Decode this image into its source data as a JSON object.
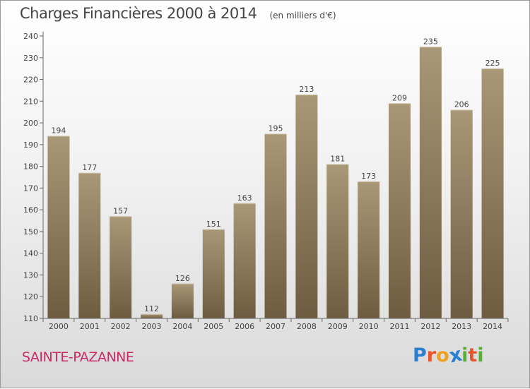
{
  "title": "Charges Financières 2000 à 2014",
  "unit_note": "(en milliers d'€)",
  "town": "SAINTE-PAZANNE",
  "logo": {
    "text": "Proxiti",
    "letters": [
      "P",
      "r",
      "o",
      "x",
      "i",
      "t",
      "i"
    ],
    "colors": [
      "#2a7fd0",
      "#e8552a",
      "#f0a020",
      "#2a7fd0",
      "#58b030",
      "#e8552a",
      "#58b030"
    ]
  },
  "colors": {
    "bar_light": "#a89877",
    "bar_dark": "#6e5c40",
    "axis": "#666666",
    "text": "#444444",
    "town": "#cc2a66"
  },
  "chart_data": {
    "type": "bar",
    "title": "Charges Financières 2000 à 2014",
    "subtitle": "(en milliers d'€)",
    "xlabel": "",
    "ylabel": "",
    "categories": [
      "2000",
      "2001",
      "2002",
      "2003",
      "2004",
      "2005",
      "2006",
      "2007",
      "2008",
      "2009",
      "2010",
      "2011",
      "2012",
      "2013",
      "2014"
    ],
    "values": [
      194,
      177,
      157,
      112,
      126,
      151,
      163,
      195,
      213,
      181,
      173,
      209,
      235,
      206,
      225
    ],
    "ylim": [
      110,
      240
    ],
    "yticks": [
      110,
      120,
      130,
      140,
      150,
      160,
      170,
      180,
      190,
      200,
      210,
      220,
      230,
      240
    ],
    "grid": false,
    "data_labels": true
  }
}
